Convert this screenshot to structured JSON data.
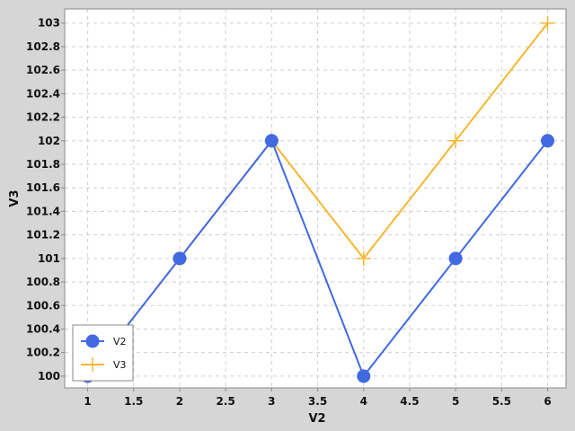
{
  "chart_data": {
    "type": "line",
    "xlabel": "V2",
    "ylabel": "V3",
    "xlim": [
      0.75,
      6.2
    ],
    "ylim": [
      99.9,
      103.12
    ],
    "x_ticks": [
      "1",
      "1.5",
      "2",
      "2.5",
      "3",
      "3.5",
      "4",
      "4.5",
      "5",
      "5.5",
      "6"
    ],
    "y_ticks": [
      "100",
      "100.2",
      "100.4",
      "100.6",
      "100.8",
      "101",
      "101.2",
      "101.4",
      "101.6",
      "101.8",
      "102",
      "102.2",
      "102.4",
      "102.6",
      "102.8",
      "103"
    ],
    "grid": true,
    "legend_position": "bottom-left",
    "series": [
      {
        "name": "V2",
        "x": [
          1,
          2,
          3,
          4,
          5,
          6
        ],
        "values": [
          100,
          101,
          102,
          100,
          101,
          102
        ],
        "color": "#4169e1",
        "marker": "circle"
      },
      {
        "name": "V3",
        "x": [
          1,
          2,
          3,
          4,
          5,
          6
        ],
        "values": [
          100,
          101,
          102,
          101,
          102,
          103
        ],
        "color": "#f5b731",
        "marker": "plus"
      }
    ]
  }
}
